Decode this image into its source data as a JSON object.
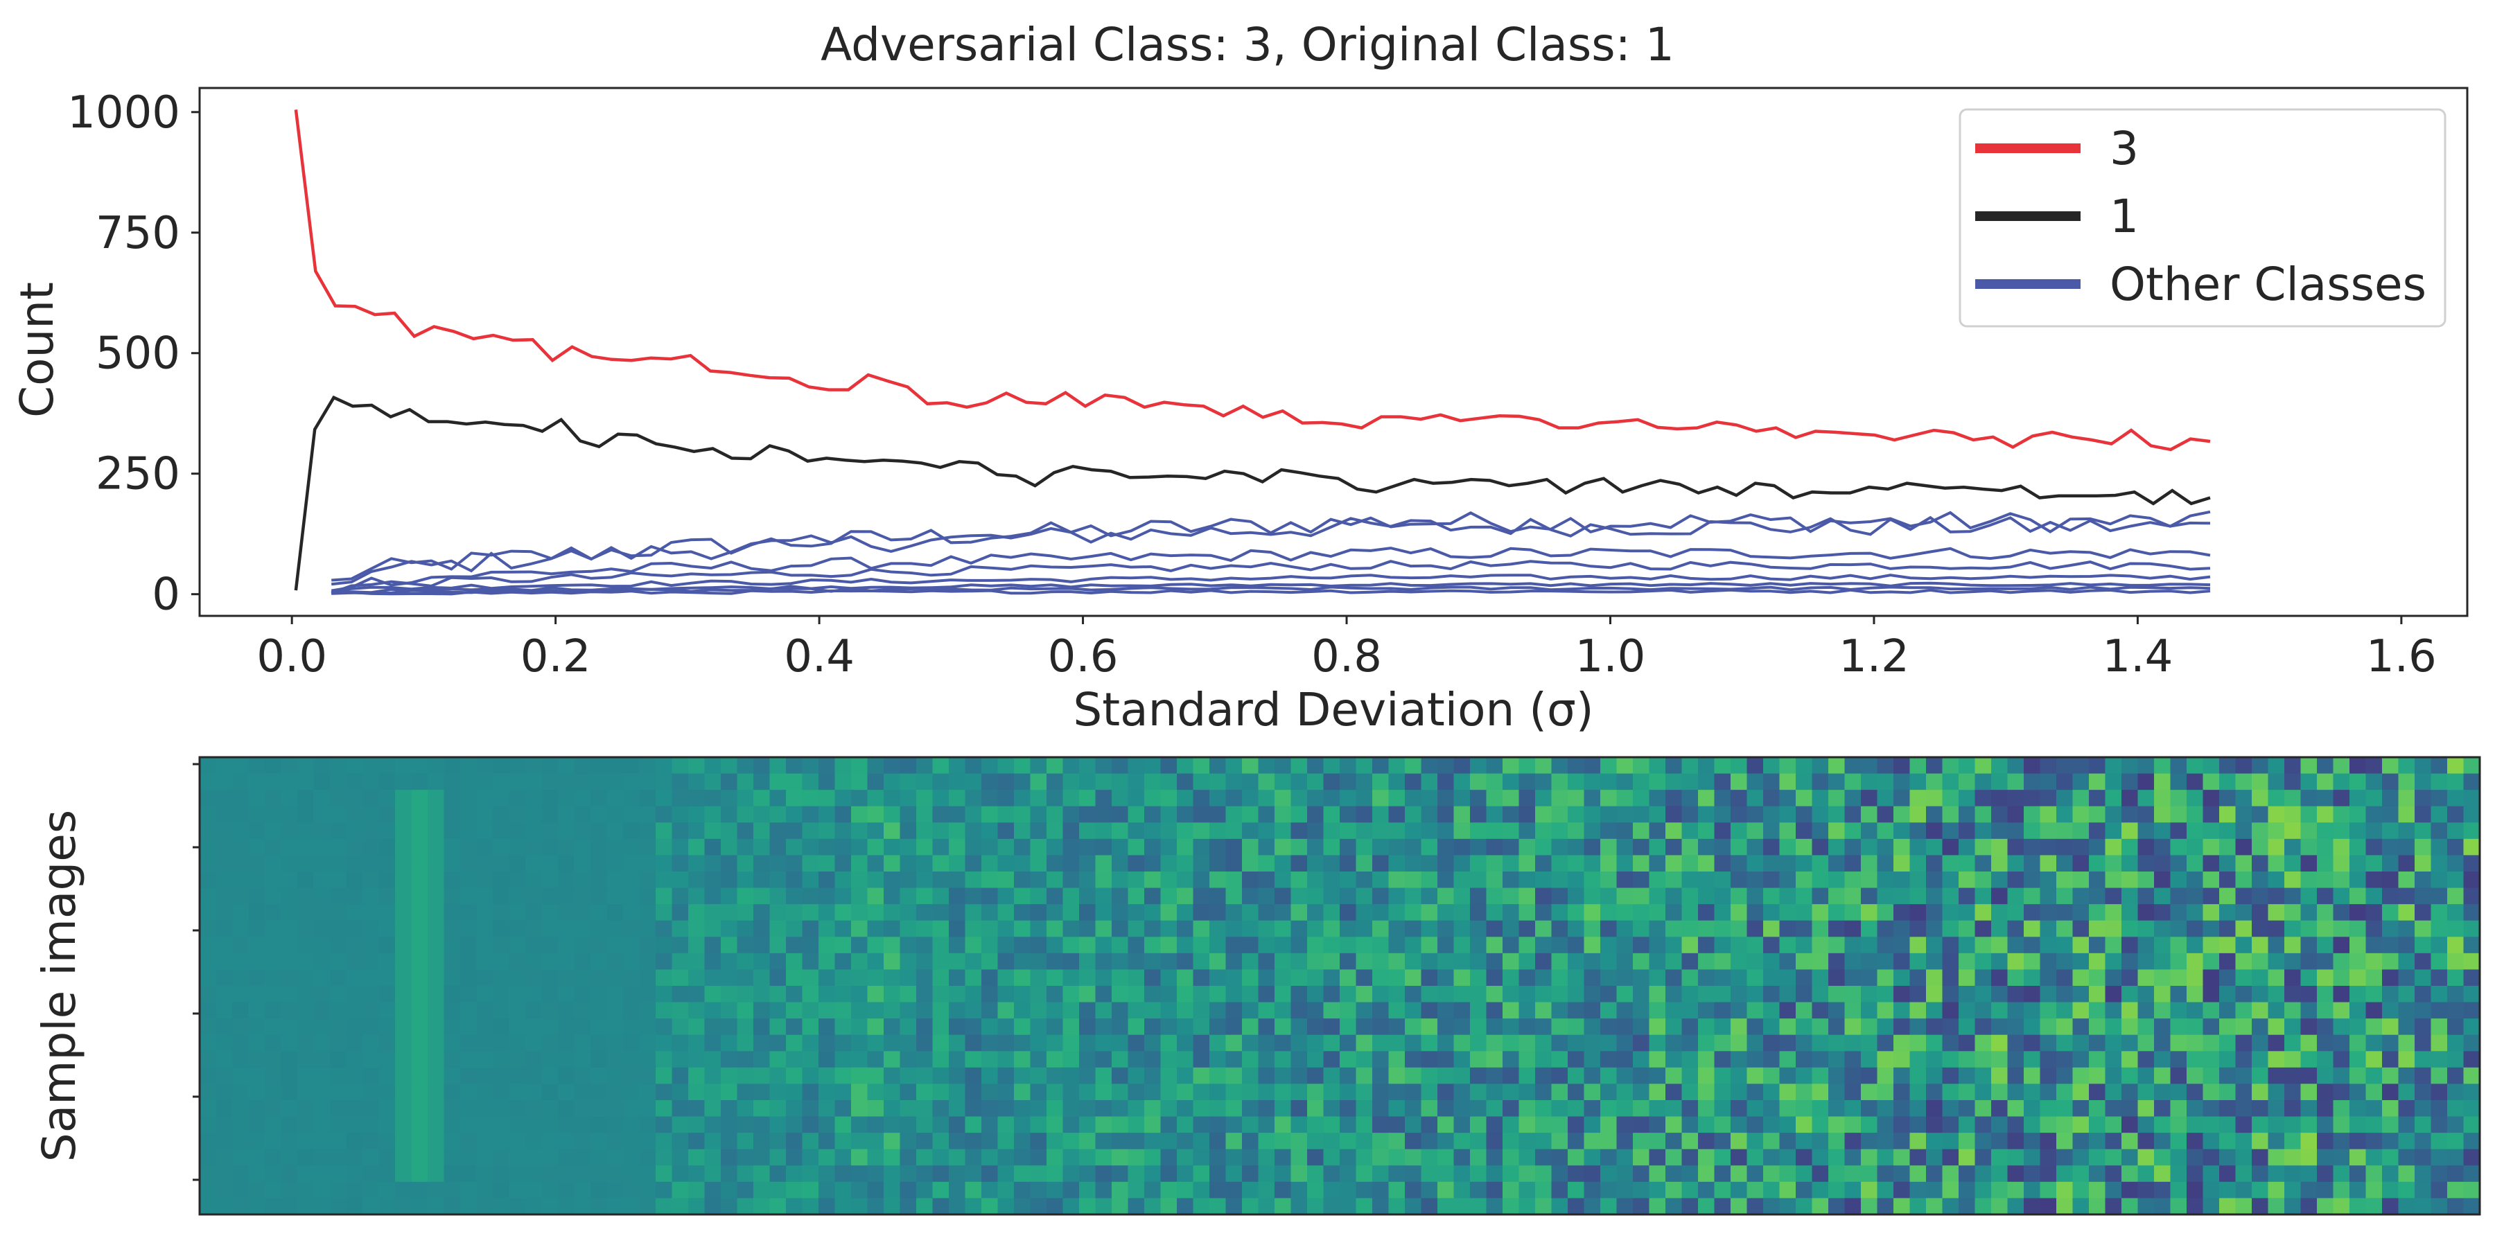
{
  "title": "Adversarial Class: 3, Original Class: 1",
  "chart_data": [
    {
      "type": "line",
      "title": "Adversarial Class: 3, Original Class: 1",
      "xlabel": "Standard Deviation (σ)",
      "ylabel": "Count",
      "xlim": [
        -0.07,
        1.65
      ],
      "ylim": [
        -45,
        1050
      ],
      "xticks": [
        "0.0",
        "0.2",
        "0.4",
        "0.6",
        "0.8",
        "1.0",
        "1.2",
        "1.4",
        "1.6"
      ],
      "yticks": [
        "0",
        "250",
        "500",
        "750",
        "1000"
      ],
      "grid": false,
      "legend_position": "top-right",
      "legend": [
        {
          "label": "3",
          "color": "#e8333a"
        },
        {
          "label": "1",
          "color": "#262626"
        },
        {
          "label": "Other Classes",
          "color": "#4a5aa8"
        }
      ],
      "x_range": [
        0.003,
        1.455
      ],
      "series": [
        {
          "name": "3",
          "color": "#e8333a",
          "values": [
            1005,
            670,
            598,
            597,
            580,
            583,
            535,
            555,
            545,
            530,
            537,
            527,
            528,
            485,
            513,
            493,
            487,
            485,
            490,
            488,
            495,
            463,
            460,
            454,
            449,
            448,
            430,
            424,
            424,
            455,
            442,
            430,
            395,
            397,
            388,
            397,
            417,
            398,
            395,
            418,
            390,
            413,
            408,
            388,
            398,
            393,
            390,
            370,
            390,
            367,
            380,
            355,
            356,
            353,
            345,
            368,
            368,
            363,
            372,
            360,
            365,
            370,
            369,
            362,
            345,
            345,
            355,
            358,
            362,
            346,
            343,
            345,
            357,
            351,
            338,
            345,
            325,
            338,
            336,
            333,
            330,
            320,
            330,
            340,
            335,
            320,
            326,
            305,
            328,
            336,
            326,
            320,
            312,
            340,
            308,
            300,
            322,
            317
          ]
        },
        {
          "name": "1",
          "color": "#262626",
          "values": [
            8,
            342,
            408,
            390,
            392,
            368,
            383,
            358,
            358,
            353,
            357,
            352,
            350,
            338,
            362,
            318,
            306,
            332,
            330,
            312,
            305,
            296,
            302,
            282,
            281,
            308,
            297,
            276,
            282,
            278,
            275,
            278,
            276,
            272,
            263,
            275,
            272,
            248,
            245,
            225,
            252,
            265,
            258,
            255,
            242,
            243,
            245,
            244,
            240,
            255,
            250,
            233,
            258,
            252,
            245,
            240,
            218,
            212,
            225,
            238,
            230,
            232,
            238,
            236,
            225,
            230,
            238,
            210,
            230,
            240,
            212,
            225,
            236,
            228,
            210,
            222,
            205,
            230,
            225,
            200,
            212,
            210,
            210,
            222,
            218,
            230,
            225,
            220,
            222,
            218,
            215,
            224,
            200,
            204,
            204,
            204,
            205,
            212,
            188,
            215,
            188,
            200
          ]
        }
      ],
      "other_classes_color": "#4a5aa8",
      "other_classes_start_x": 0.03
    },
    {
      "type": "heatmap",
      "ylabel": "Sample images",
      "colormap": "viridis"
    }
  ]
}
